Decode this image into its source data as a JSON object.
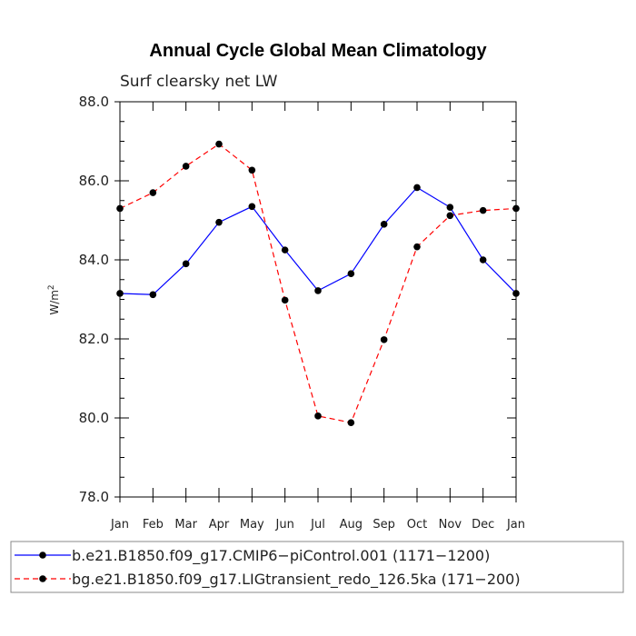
{
  "chart_data": {
    "type": "line",
    "title": "Annual Cycle Global Mean Climatology",
    "subtitle": "Surf clearsky net LW",
    "ylabel": "W/m",
    "ylabel_sup": "2",
    "xlabel": "",
    "categories": [
      "Jan",
      "Feb",
      "Mar",
      "Apr",
      "May",
      "Jun",
      "Jul",
      "Aug",
      "Sep",
      "Oct",
      "Nov",
      "Dec",
      "Jan"
    ],
    "ylim": [
      78.0,
      88.0
    ],
    "yticks": [
      78.0,
      80.0,
      82.0,
      84.0,
      86.0,
      88.0
    ],
    "ytick_labels": [
      "78.0",
      "80.0",
      "82.0",
      "84.0",
      "86.0",
      "88.0"
    ],
    "legend_position": "bottom",
    "series": [
      {
        "name": "b.e21.B1850.f09_g17.CMIP6−piControl.001 (1171−1200)",
        "color": "#0000ff",
        "style": "solid",
        "values": [
          83.15,
          83.12,
          83.9,
          84.95,
          85.35,
          84.25,
          83.22,
          83.65,
          84.9,
          85.83,
          85.33,
          84.0,
          83.15
        ]
      },
      {
        "name": "bg.e21.B1850.f09_g17.LIGtransient_redo_126.5ka (171−200)",
        "color": "#ff0000",
        "style": "dashed",
        "values": [
          85.3,
          85.7,
          86.37,
          86.93,
          86.27,
          82.98,
          80.05,
          79.88,
          81.98,
          84.33,
          85.12,
          85.25,
          85.3
        ]
      }
    ]
  }
}
